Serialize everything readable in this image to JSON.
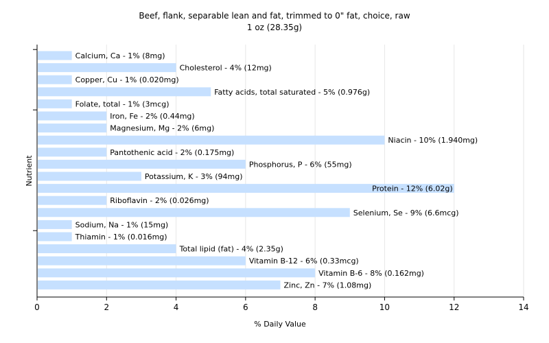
{
  "chart_data": {
    "type": "bar",
    "orientation": "horizontal",
    "title": "Beef, flank, separable lean and fat, trimmed to 0\" fat, choice, raw",
    "subtitle": "1 oz (28.35g)",
    "xlabel": "% Daily Value",
    "ylabel": "Nutrient",
    "xlim": [
      0,
      14
    ],
    "xticks": [
      0,
      2,
      4,
      6,
      8,
      10,
      12,
      14
    ],
    "grid": true,
    "bar_color": "#c6e0ff",
    "categories": [
      "Calcium, Ca",
      "Cholesterol",
      "Copper, Cu",
      "Fatty acids, total saturated",
      "Folate, total",
      "Iron, Fe",
      "Magnesium, Mg",
      "Niacin",
      "Pantothenic acid",
      "Phosphorus, P",
      "Potassium, K",
      "Protein",
      "Riboflavin",
      "Selenium, Se",
      "Sodium, Na",
      "Thiamin",
      "Total lipid (fat)",
      "Vitamin B-12",
      "Vitamin B-6",
      "Zinc, Zn"
    ],
    "values": [
      1,
      4,
      1,
      5,
      1,
      2,
      2,
      10,
      2,
      6,
      3,
      12,
      2,
      9,
      1,
      1,
      4,
      6,
      8,
      7
    ],
    "labels": [
      "Calcium, Ca - 1% (8mg)",
      "Cholesterol - 4% (12mg)",
      "Copper, Cu - 1% (0.020mg)",
      "Fatty acids, total saturated - 5% (0.976g)",
      "Folate, total - 1% (3mcg)",
      "Iron, Fe - 2% (0.44mg)",
      "Magnesium, Mg - 2% (6mg)",
      "Niacin - 10% (1.940mg)",
      "Pantothenic acid - 2% (0.175mg)",
      "Phosphorus, P - 6% (55mg)",
      "Potassium, K - 3% (94mg)",
      "Protein - 12% (6.02g)",
      "Riboflavin - 2% (0.026mg)",
      "Selenium, Se - 9% (6.6mcg)",
      "Sodium, Na - 1% (15mg)",
      "Thiamin - 1% (0.016mg)",
      "Total lipid (fat) - 4% (2.35g)",
      "Vitamin B-12 - 6% (0.33mcg)",
      "Vitamin B-6 - 8% (0.162mg)",
      "Zinc, Zn - 7% (1.08mg)"
    ]
  }
}
